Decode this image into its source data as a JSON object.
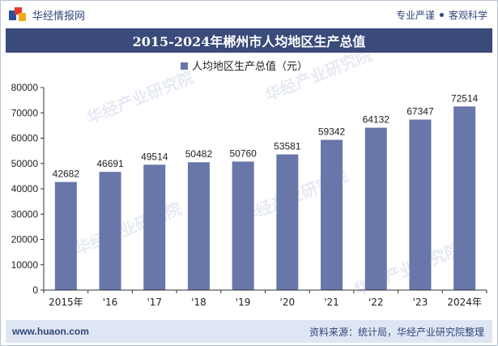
{
  "header": {
    "brand": "华经情报网",
    "slogan_left": "专业严谨",
    "slogan_right": "客观科学"
  },
  "title": "2015-2024年郴州市人均地区生产总值",
  "footer": {
    "url": "www.huaon.com",
    "source": "资料来源：统计局，华经产业研究院整理"
  },
  "watermark": "华经产业研究院",
  "colors": {
    "bar": "#6876a9",
    "header": "#3a4a7a",
    "footer_bg": "#dfe6f3",
    "text": "#33467a"
  },
  "chart_data": {
    "type": "bar",
    "categories": [
      "2015年",
      "'16",
      "'17",
      "'18",
      "'19",
      "'20",
      "'21",
      "'22",
      "'23",
      "2024年"
    ],
    "series": [
      {
        "name": "人均地区生产总值（元）",
        "values": [
          42682,
          46691,
          49514,
          50482,
          50760,
          53581,
          59342,
          64132,
          67347,
          72514
        ]
      }
    ],
    "y_ticks": [
      "0",
      "10000",
      "20000",
      "30000",
      "40000",
      "50000",
      "60000",
      "70000",
      "80000"
    ],
    "ylim": [
      0,
      80000
    ],
    "grid": false,
    "legend": "top-center"
  }
}
